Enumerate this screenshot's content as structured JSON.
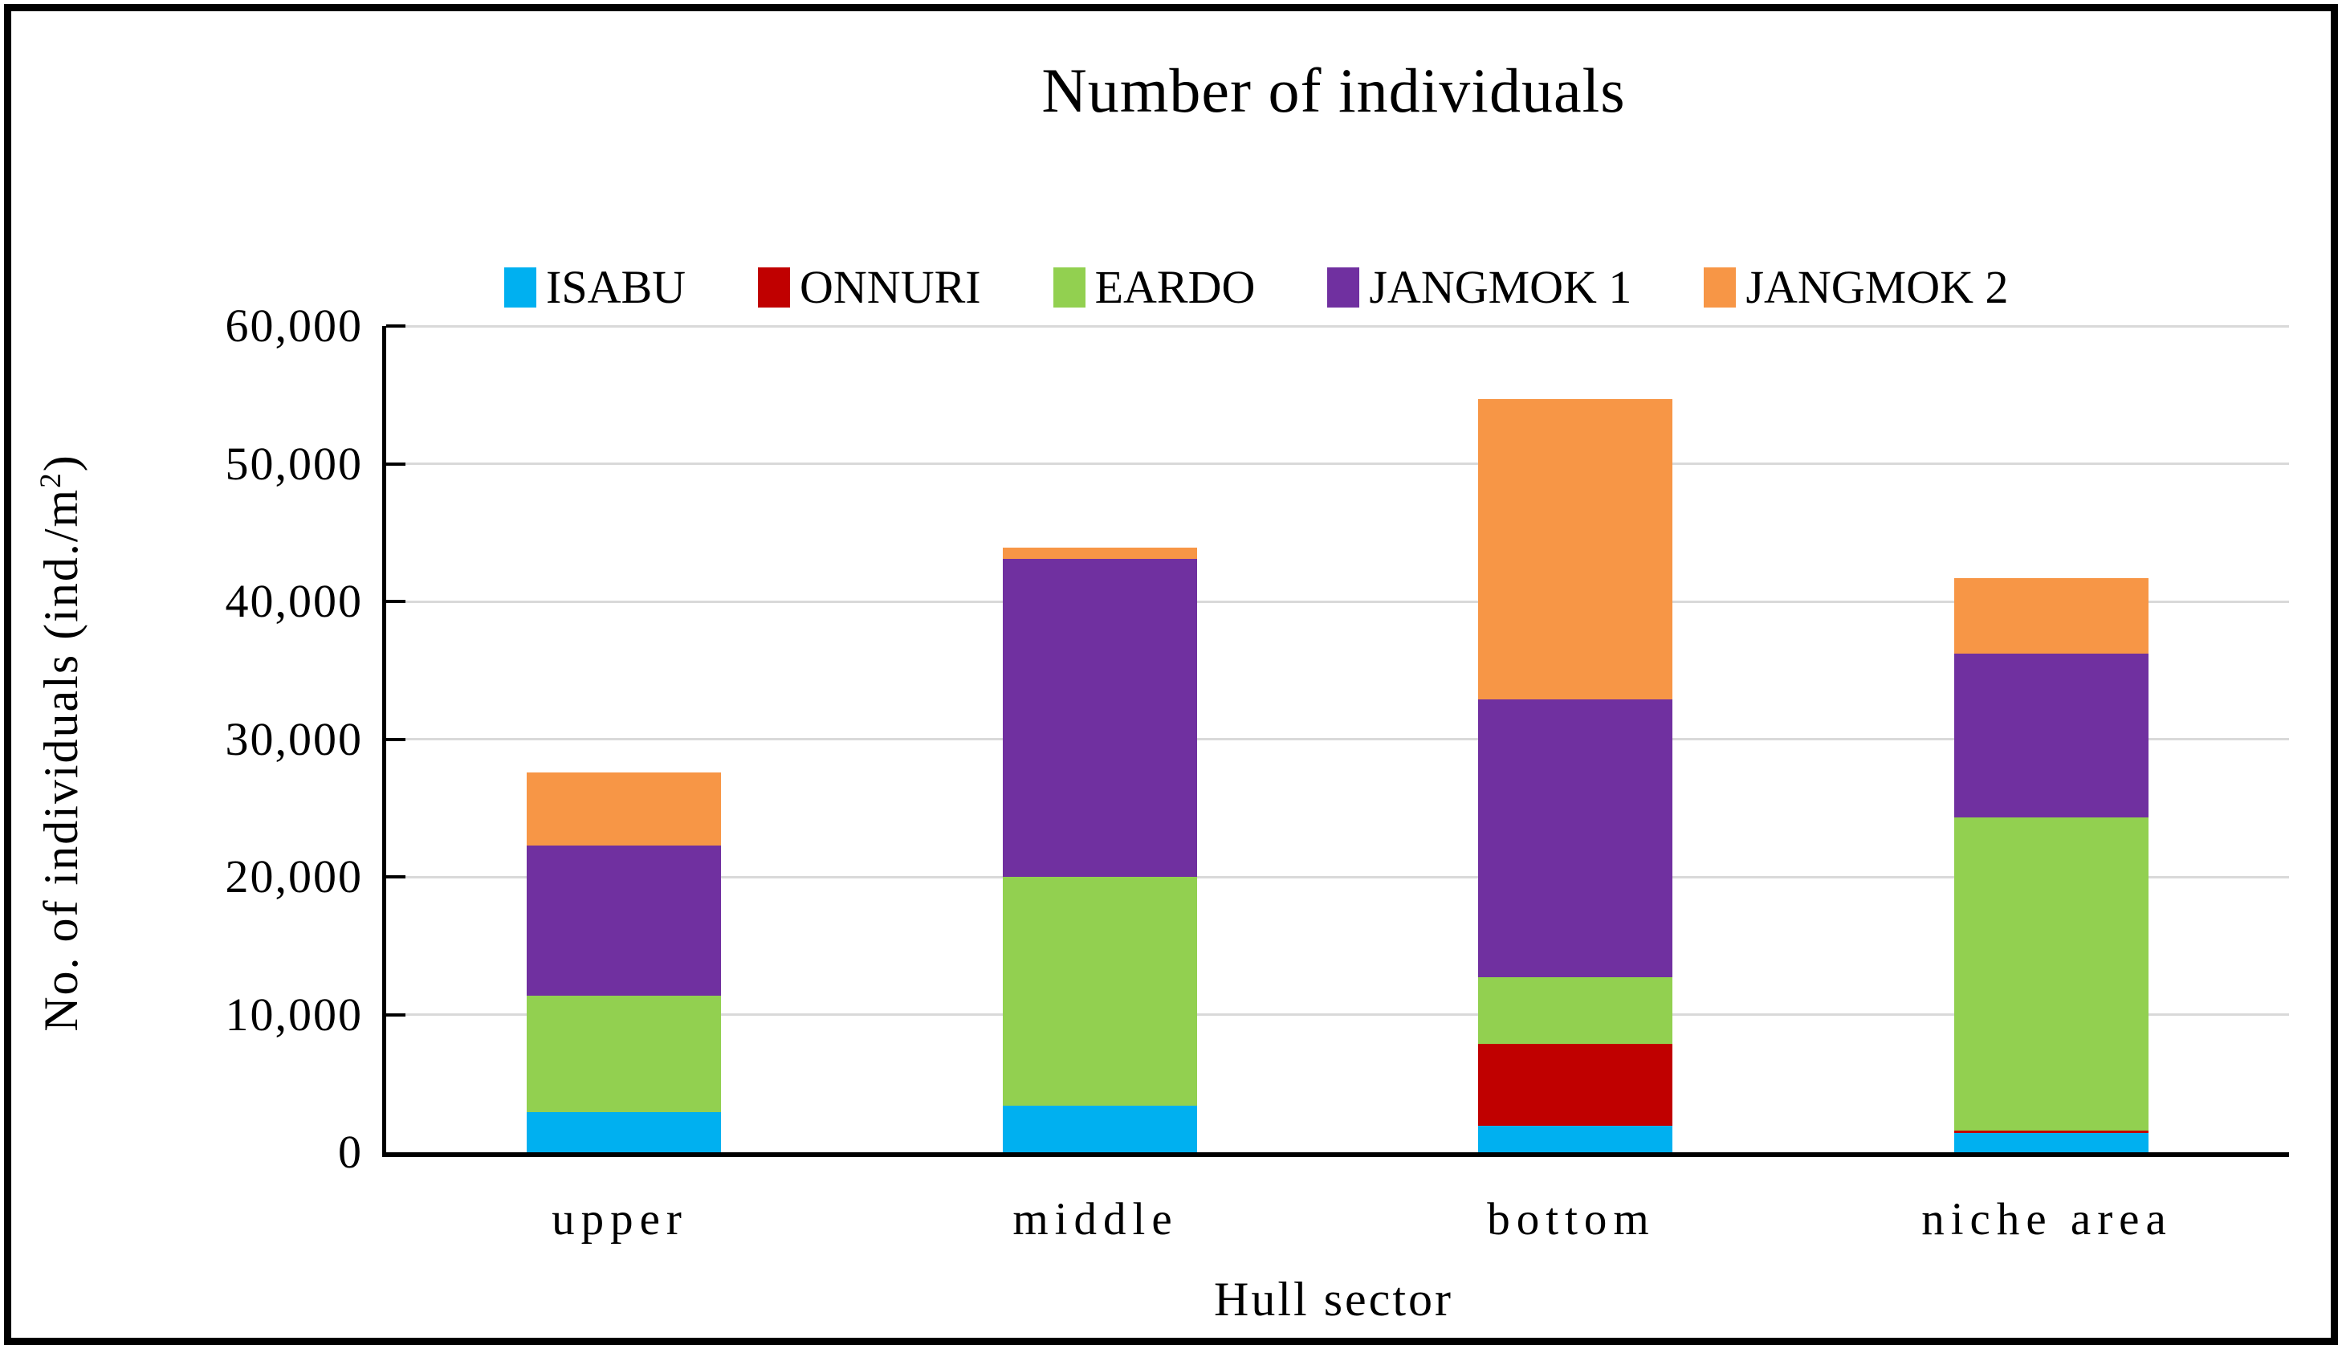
{
  "figure": {
    "title": "Number of individuals"
  },
  "chart_data": {
    "type": "bar",
    "stacked": true,
    "title": "Number of individuals",
    "xlabel": "Hull sector",
    "ylabel": "No. of individuals (ind./m²)",
    "categories": [
      "upper",
      "middle",
      "bottom",
      "niche area"
    ],
    "series": [
      {
        "name": "ISABU",
        "color": "#00B0F0",
        "values": [
          2900,
          3400,
          1900,
          1400
        ]
      },
      {
        "name": "ONNURI",
        "color": "#C00000",
        "values": [
          0,
          0,
          6000,
          200
        ]
      },
      {
        "name": "EARDO",
        "color": "#92D050",
        "values": [
          8500,
          16600,
          4800,
          22700
        ]
      },
      {
        "name": "JANGMOK 1",
        "color": "#7030A0",
        "values": [
          10900,
          23100,
          20200,
          11900
        ]
      },
      {
        "name": "JANGMOK 2",
        "color": "#F79646",
        "values": [
          5300,
          800,
          21800,
          5500
        ]
      }
    ],
    "category_totals": [
      27600,
      43900,
      54700,
      41700
    ],
    "ylim": [
      0,
      60000
    ],
    "yticks": [
      {
        "value": 0,
        "label": "0"
      },
      {
        "value": 10000,
        "label": "10,000"
      },
      {
        "value": 20000,
        "label": "20,000"
      },
      {
        "value": 30000,
        "label": "30,000"
      },
      {
        "value": 40000,
        "label": "40,000"
      },
      {
        "value": 50000,
        "label": "50,000"
      },
      {
        "value": 60000,
        "label": "60,000"
      }
    ],
    "legend_position": "top",
    "grid": true
  },
  "colors": {
    "background": "#FFFFFF",
    "frame": "#000000",
    "axis": "#000000",
    "gridline": "#D9D9D9",
    "text": "#000000"
  }
}
